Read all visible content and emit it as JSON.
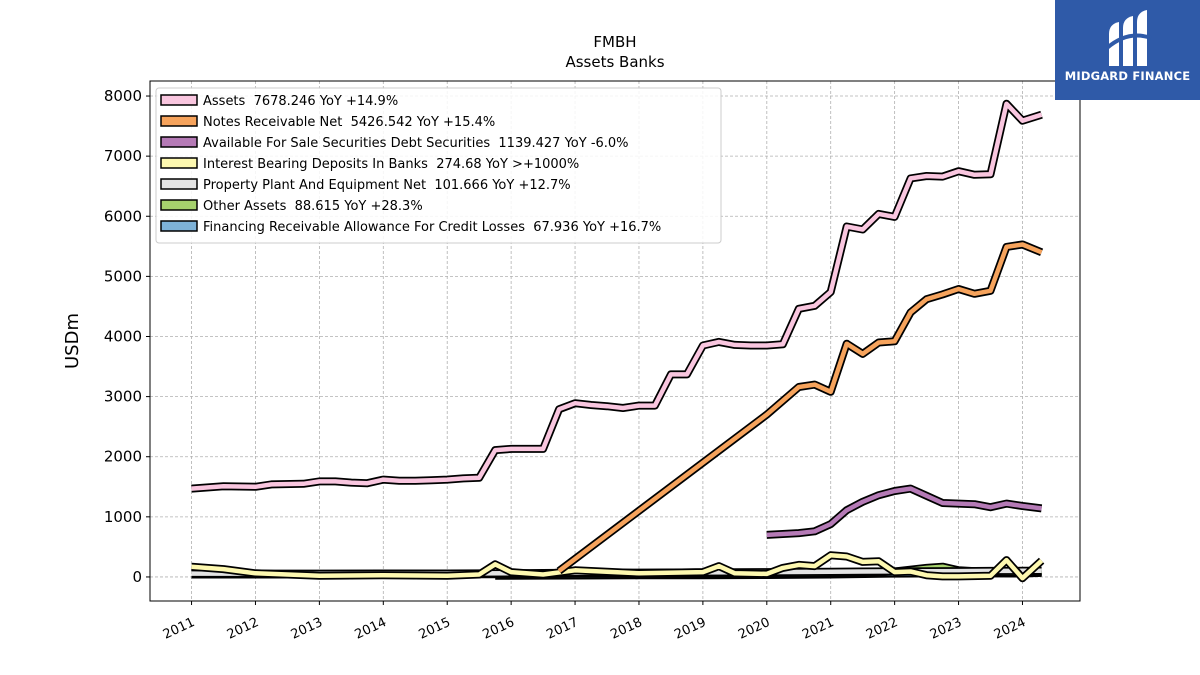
{
  "chart_data": {
    "type": "line",
    "title": "FMBH",
    "subtitle": "Assets Banks",
    "ylabel": "USDm",
    "xlabel": "",
    "ylim": [
      -400,
      8250
    ],
    "xlim": [
      2010.35,
      2024.9
    ],
    "yticks": [
      0,
      1000,
      2000,
      3000,
      4000,
      5000,
      6000,
      7000,
      8000
    ],
    "xticks": [
      "2011",
      "2012",
      "2013",
      "2014",
      "2015",
      "2016",
      "2017",
      "2018",
      "2019",
      "2020",
      "2021",
      "2022",
      "2023",
      "2024"
    ],
    "grid": true,
    "legend_position": "top-left",
    "series": [
      {
        "name": "Assets",
        "legend": "Assets  7678.246 YoY +14.9%",
        "color": "#f9c6df",
        "x": [
          2011.0,
          2011.5,
          2012.0,
          2012.25,
          2012.75,
          2013.0,
          2013.25,
          2013.5,
          2013.75,
          2014.0,
          2014.25,
          2014.5,
          2014.75,
          2015.0,
          2015.25,
          2015.5,
          2015.75,
          2016.0,
          2016.25,
          2016.5,
          2016.75,
          2017.0,
          2017.25,
          2017.5,
          2017.75,
          2018.0,
          2018.25,
          2018.5,
          2018.75,
          2019.0,
          2019.25,
          2019.5,
          2019.75,
          2020.0,
          2020.25,
          2020.5,
          2020.75,
          2021.0,
          2021.25,
          2021.5,
          2021.75,
          2022.0,
          2022.25,
          2022.5,
          2022.75,
          2023.0,
          2023.25,
          2023.5,
          2023.75,
          2024.0,
          2024.3
        ],
        "y": [
          1470,
          1510,
          1500,
          1540,
          1550,
          1590,
          1590,
          1570,
          1560,
          1620,
          1600,
          1600,
          1610,
          1620,
          1640,
          1650,
          2110,
          2130,
          2130,
          2130,
          2790,
          2890,
          2860,
          2840,
          2810,
          2850,
          2850,
          3370,
          3370,
          3850,
          3910,
          3860,
          3850,
          3850,
          3870,
          4460,
          4510,
          4740,
          5830,
          5780,
          6040,
          5990,
          6630,
          6670,
          6660,
          6750,
          6690,
          6700,
          7870,
          7590,
          7690
        ]
      },
      {
        "name": "Notes Receivable Net",
        "legend": "Notes Receivable Net  5426.542 YoY +15.4%",
        "color": "#f6a35c",
        "x": [
          2016.75,
          2020.0,
          2020.5,
          2020.75,
          2021.0,
          2021.25,
          2021.5,
          2021.75,
          2022.0,
          2022.25,
          2022.5,
          2022.75,
          2023.0,
          2023.25,
          2023.5,
          2023.75,
          2024.0,
          2024.3
        ],
        "y": [
          100,
          2700,
          3160,
          3200,
          3080,
          3880,
          3710,
          3900,
          3920,
          4400,
          4620,
          4700,
          4790,
          4710,
          4760,
          5490,
          5530,
          5400
        ]
      },
      {
        "name": "Available For Sale Securities Debt Securities",
        "legend": "Available For Sale Securities Debt Securities  1139.427 YoY -6.0%",
        "color": "#b57ab6",
        "x": [
          2020.0,
          2020.5,
          2020.75,
          2021.0,
          2021.25,
          2021.5,
          2021.75,
          2022.0,
          2022.25,
          2022.5,
          2022.75,
          2023.0,
          2023.25,
          2023.5,
          2023.75,
          2024.0,
          2024.3
        ],
        "y": [
          700,
          730,
          760,
          880,
          1110,
          1250,
          1360,
          1430,
          1470,
          1350,
          1230,
          1220,
          1210,
          1160,
          1220,
          1180,
          1140
        ]
      },
      {
        "name": "Interest Bearing Deposits In Banks",
        "legend": "Interest Bearing Deposits In Banks  274.68 YoY >+1000%",
        "color": "#fdf8b0",
        "x": [
          2011.0,
          2011.5,
          2012.0,
          2013.0,
          2014.0,
          2015.0,
          2015.5,
          2015.75,
          2016.0,
          2016.5,
          2017.0,
          2018.0,
          2019.0,
          2019.25,
          2019.5,
          2020.0,
          2020.25,
          2020.5,
          2020.75,
          2021.0,
          2021.25,
          2021.5,
          2021.75,
          2022.0,
          2022.25,
          2022.5,
          2022.75,
          2023.0,
          2023.5,
          2023.75,
          2024.0,
          2024.3
        ],
        "y": [
          170,
          130,
          60,
          20,
          30,
          20,
          40,
          210,
          80,
          40,
          110,
          60,
          80,
          180,
          60,
          50,
          150,
          200,
          180,
          360,
          340,
          250,
          260,
          80,
          90,
          30,
          10,
          10,
          20,
          280,
          -20,
          270
        ]
      },
      {
        "name": "Property Plant And Equipment Net",
        "legend": "Property Plant And Equipment Net  101.666 YoY +12.7%",
        "color": "#e3e3e3",
        "x": [
          2011.0,
          2013.0,
          2015.0,
          2016.0,
          2017.0,
          2018.0,
          2019.0,
          2020.0,
          2021.0,
          2021.5,
          2022.0,
          2022.5,
          2023.0,
          2023.5,
          2024.0,
          2024.3
        ],
        "y": [
          55,
          55,
          58,
          60,
          70,
          72,
          75,
          80,
          88,
          90,
          92,
          95,
          98,
          100,
          102,
          102
        ]
      },
      {
        "name": "Other Assets",
        "legend": "Other Assets  88.615 YoY +28.3%",
        "color": "#a6d26d",
        "x": [
          2011.0,
          2012.0,
          2013.0,
          2014.0,
          2015.0,
          2016.0,
          2017.0,
          2018.0,
          2019.0,
          2020.0,
          2021.0,
          2021.5,
          2022.0,
          2022.5,
          2022.75,
          2023.0,
          2023.5,
          2024.0,
          2024.3
        ],
        "y": [
          40,
          40,
          40,
          45,
          45,
          45,
          50,
          50,
          55,
          55,
          60,
          60,
          90,
          150,
          170,
          110,
          80,
          70,
          89
        ]
      },
      {
        "name": "Financing Receivable Allowance For Credit Losses",
        "legend": "Financing Receivable Allowance For Credit Losses  67.936 YoY +16.7%",
        "color": "#7eb2d8",
        "x": [
          2015.75,
          2017.0,
          2018.0,
          2019.0,
          2020.0,
          2021.0,
          2022.0,
          2023.0,
          2024.0,
          2024.3
        ],
        "y": [
          20,
          25,
          28,
          30,
          32,
          40,
          55,
          60,
          58,
          68
        ]
      }
    ]
  },
  "logo": {
    "text": "MIDGARD FINANCE",
    "background": "#2f5aa8"
  }
}
